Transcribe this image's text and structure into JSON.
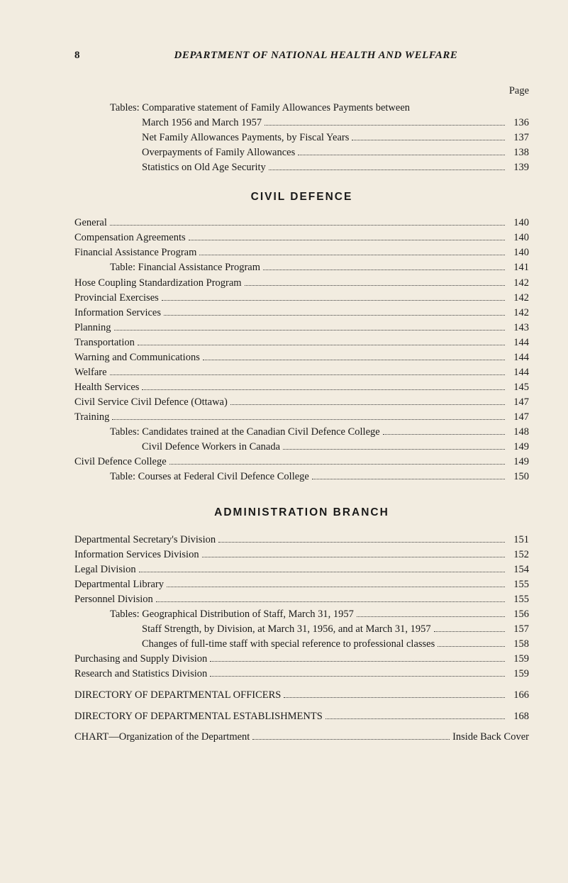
{
  "pageNumber": "8",
  "headerTitle": "DEPARTMENT OF NATIONAL HEALTH AND WELFARE",
  "pageLabel": "Page",
  "topBlock": {
    "prefix": "Tables:",
    "lines": [
      {
        "label": "Comparative statement of Family Allowances Payments between",
        "page": "",
        "noDots": true,
        "cont": true
      },
      {
        "label": "March 1956 and March 1957",
        "page": "136",
        "indent": "indent-2"
      },
      {
        "label": "Net Family Allowances Payments, by Fiscal Years",
        "page": "137",
        "indent": "indent-2"
      },
      {
        "label": "Overpayments of Family Allowances",
        "page": "138",
        "indent": "indent-2"
      },
      {
        "label": "Statistics on Old Age Security",
        "page": "139",
        "indent": "indent-2"
      }
    ]
  },
  "civilDefence": {
    "heading": "CIVIL DEFENCE",
    "entries": [
      {
        "label": "General",
        "page": "140",
        "indent": "indent-0"
      },
      {
        "label": "Compensation Agreements",
        "page": "140",
        "indent": "indent-0"
      },
      {
        "label": "Financial Assistance Program",
        "page": "140",
        "indent": "indent-0"
      },
      {
        "label": "Table: Financial Assistance Program",
        "page": "141",
        "indent": "indent-1"
      },
      {
        "label": "Hose Coupling Standardization Program",
        "page": "142",
        "indent": "indent-0"
      },
      {
        "label": "Provincial Exercises",
        "page": "142",
        "indent": "indent-0"
      },
      {
        "label": "Information Services",
        "page": "142",
        "indent": "indent-0"
      },
      {
        "label": "Planning",
        "page": "143",
        "indent": "indent-0"
      },
      {
        "label": "Transportation",
        "page": "144",
        "indent": "indent-0"
      },
      {
        "label": "Warning and Communications",
        "page": "144",
        "indent": "indent-0"
      },
      {
        "label": "Welfare",
        "page": "144",
        "indent": "indent-0"
      },
      {
        "label": "Health Services",
        "page": "145",
        "indent": "indent-0"
      },
      {
        "label": "Civil Service Civil Defence (Ottawa)",
        "page": "147",
        "indent": "indent-0"
      },
      {
        "label": "Training",
        "page": "147",
        "indent": "indent-0"
      },
      {
        "label": "Tables: Candidates trained at the Canadian Civil Defence College",
        "page": "148",
        "indent": "indent-1"
      },
      {
        "label": "Civil Defence Workers in Canada",
        "page": "149",
        "indent": "indent-2"
      },
      {
        "label": "Civil Defence College",
        "page": "149",
        "indent": "indent-0"
      },
      {
        "label": "Table: Courses at Federal Civil Defence College",
        "page": "150",
        "indent": "indent-1"
      }
    ]
  },
  "admin": {
    "heading": "ADMINISTRATION BRANCH",
    "entries": [
      {
        "label": "Departmental Secretary's Division",
        "page": "151",
        "indent": "indent-0"
      },
      {
        "label": "Information Services Division",
        "page": "152",
        "indent": "indent-0"
      },
      {
        "label": "Legal Division",
        "page": "154",
        "indent": "indent-0"
      },
      {
        "label": "Departmental Library",
        "page": "155",
        "indent": "indent-0"
      },
      {
        "label": "Personnel Division",
        "page": "155",
        "indent": "indent-0"
      },
      {
        "label": "Tables: Geographical Distribution of Staff, March 31, 1957",
        "page": "156",
        "indent": "indent-1"
      },
      {
        "label": "Staff Strength, by Division, at March 31, 1956, and at March 31, 1957",
        "page": "157",
        "indent": "indent-2"
      },
      {
        "label": "Changes of full-time staff with special reference to professional classes",
        "page": "158",
        "indent": "indent-2"
      },
      {
        "label": "Purchasing and Supply Division",
        "page": "159",
        "indent": "indent-0"
      },
      {
        "label": "Research and Statistics Division",
        "page": "159",
        "indent": "indent-0"
      },
      {
        "label": "DIRECTORY OF DEPARTMENTAL OFFICERS",
        "page": "166",
        "indent": "indent-0",
        "gapTop": true
      },
      {
        "label": "DIRECTORY OF DEPARTMENTAL ESTABLISHMENTS",
        "page": "168",
        "indent": "indent-0",
        "gapTop": true
      },
      {
        "label": "CHART—Organization of the Department",
        "page": "Inside Back Cover",
        "indent": "indent-0",
        "gapTop": true,
        "wide": true
      }
    ]
  }
}
